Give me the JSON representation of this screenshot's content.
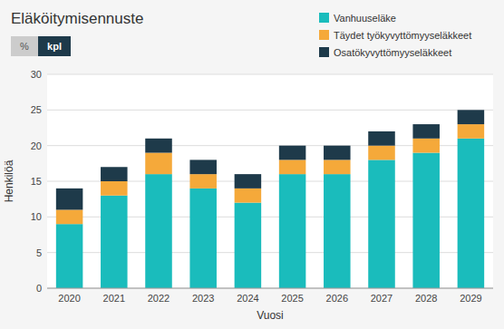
{
  "chart_data": {
    "type": "bar",
    "stacked": true,
    "title": "Eläköitymisennuste",
    "x_label": "Vuosi",
    "y_label": "Henkilöä",
    "annotations": [
      "%",
      "kpl"
    ],
    "categories": [
      "2020",
      "2021",
      "2022",
      "2023",
      "2024",
      "2025",
      "2026",
      "2027",
      "2028",
      "2029"
    ],
    "series": [
      {
        "name": "Vanhuuseläke",
        "color": "#1ABCBC",
        "values": [
          9,
          13,
          16,
          14,
          12,
          16,
          16,
          18,
          19,
          21
        ]
      },
      {
        "name": "Täydet työkyvyttömyyseläkkeet",
        "color": "#F5A93A",
        "values": [
          2,
          2,
          3,
          2,
          2,
          2,
          2,
          2,
          2,
          2
        ]
      },
      {
        "name": "Osatökyvyttömyyseläkkeet",
        "color": "#1E3A4A",
        "values": [
          3,
          2,
          2,
          2,
          2,
          2,
          2,
          2,
          2,
          2
        ]
      }
    ],
    "ylim": [
      0,
      30
    ],
    "yticks": [
      0,
      5,
      10,
      15,
      20,
      25,
      30
    ],
    "grid": true,
    "legend": "top-right"
  }
}
